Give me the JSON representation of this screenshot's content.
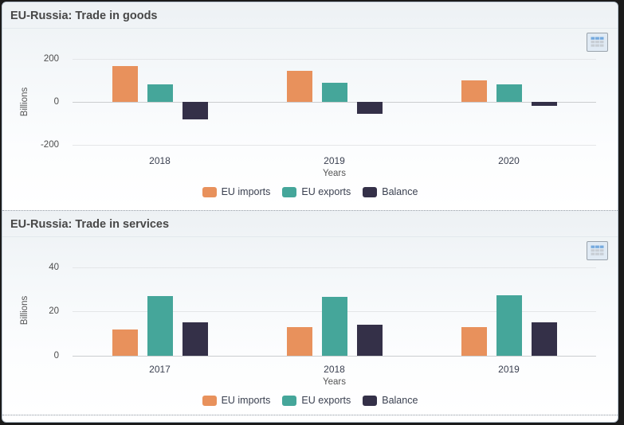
{
  "chart_data": [
    {
      "type": "bar",
      "title": "EU-Russia: Trade in goods",
      "xlabel": "Years",
      "ylabel": "Billions",
      "categories": [
        "2018",
        "2019",
        "2020"
      ],
      "series": [
        {
          "name": "EU imports",
          "color": "#e8915c",
          "values": [
            165,
            145,
            100
          ]
        },
        {
          "name": "EU exports",
          "color": "#45a69a",
          "values": [
            82,
            88,
            82
          ]
        },
        {
          "name": "Balance",
          "color": "#343048",
          "values": [
            -83,
            -57,
            -18
          ]
        }
      ],
      "ylim": [
        -240,
        240
      ],
      "gridlines": [
        200,
        0,
        -200
      ],
      "legend_position": "bottom",
      "grid": true
    },
    {
      "type": "bar",
      "title": "EU-Russia: Trade in services",
      "xlabel": "Years",
      "ylabel": "Billions",
      "categories": [
        "2017",
        "2018",
        "2019"
      ],
      "series": [
        {
          "name": "EU imports",
          "color": "#e8915c",
          "values": [
            12,
            13,
            13
          ]
        },
        {
          "name": "EU exports",
          "color": "#45a69a",
          "values": [
            27,
            26.5,
            27.5
          ]
        },
        {
          "name": "Balance",
          "color": "#343048",
          "values": [
            15,
            14,
            15
          ]
        }
      ],
      "ylim": [
        -3,
        44
      ],
      "gridlines": [
        40,
        20,
        0
      ],
      "legend_position": "bottom",
      "grid": true
    }
  ],
  "icons": {
    "data_table": "table-grid-icon",
    "table_header_color": "#74a9de",
    "table_cell_color": "#c7cdd4"
  }
}
